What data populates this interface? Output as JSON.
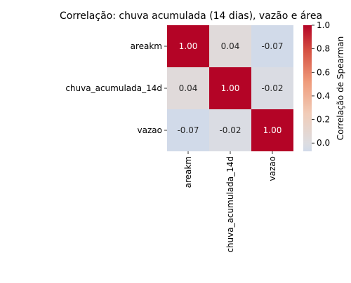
{
  "chart_data": {
    "type": "heatmap",
    "title": "Correlação: chuva acumulada (14 dias), vazão e área",
    "row_labels": [
      "areakm",
      "chuva_acumulada_14d",
      "vazao"
    ],
    "col_labels": [
      "areakm",
      "chuva_acumulada_14d",
      "vazao"
    ],
    "values": [
      [
        1.0,
        0.04,
        -0.07
      ],
      [
        0.04,
        1.0,
        -0.02
      ],
      [
        -0.07,
        -0.02,
        1.0
      ]
    ],
    "value_format": "0.00",
    "colormap": "coolwarm",
    "colorbar": {
      "label": "Correlação de Spearman",
      "range": [
        -0.07,
        1.0
      ],
      "ticks": [
        "0.0",
        "0.2",
        "0.4",
        "0.6",
        "0.8",
        "1.0"
      ],
      "tick_values": [
        0.0,
        0.2,
        0.4,
        0.6,
        0.8,
        1.0
      ]
    }
  }
}
